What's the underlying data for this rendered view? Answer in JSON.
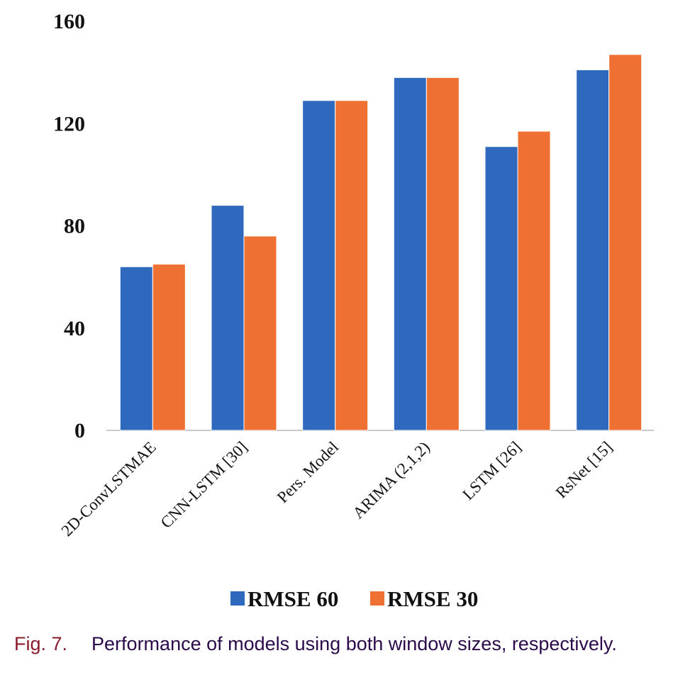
{
  "chart_data": {
    "type": "bar",
    "categories": [
      "2D-ConvLSTMAE",
      "CNN-LSTM [30]",
      "Pers. Model",
      "ARIMA (2,1,2)",
      "LSTM [26]",
      "RsNet [15]"
    ],
    "series": [
      {
        "name": "RMSE 60",
        "color": "#2f69bd",
        "values": [
          64,
          88,
          129,
          138,
          111,
          141
        ]
      },
      {
        "name": "RMSE 30",
        "color": "#ef7033",
        "values": [
          65,
          76,
          129,
          138,
          117,
          147
        ]
      }
    ],
    "yticks": [
      "0",
      "40",
      "80",
      "120",
      "160"
    ],
    "ylim": [
      0,
      160
    ],
    "grid": false,
    "legend_position": "bottom"
  },
  "caption": {
    "number": "Fig. 7.",
    "text": "Performance of models using both window sizes, respectively."
  }
}
